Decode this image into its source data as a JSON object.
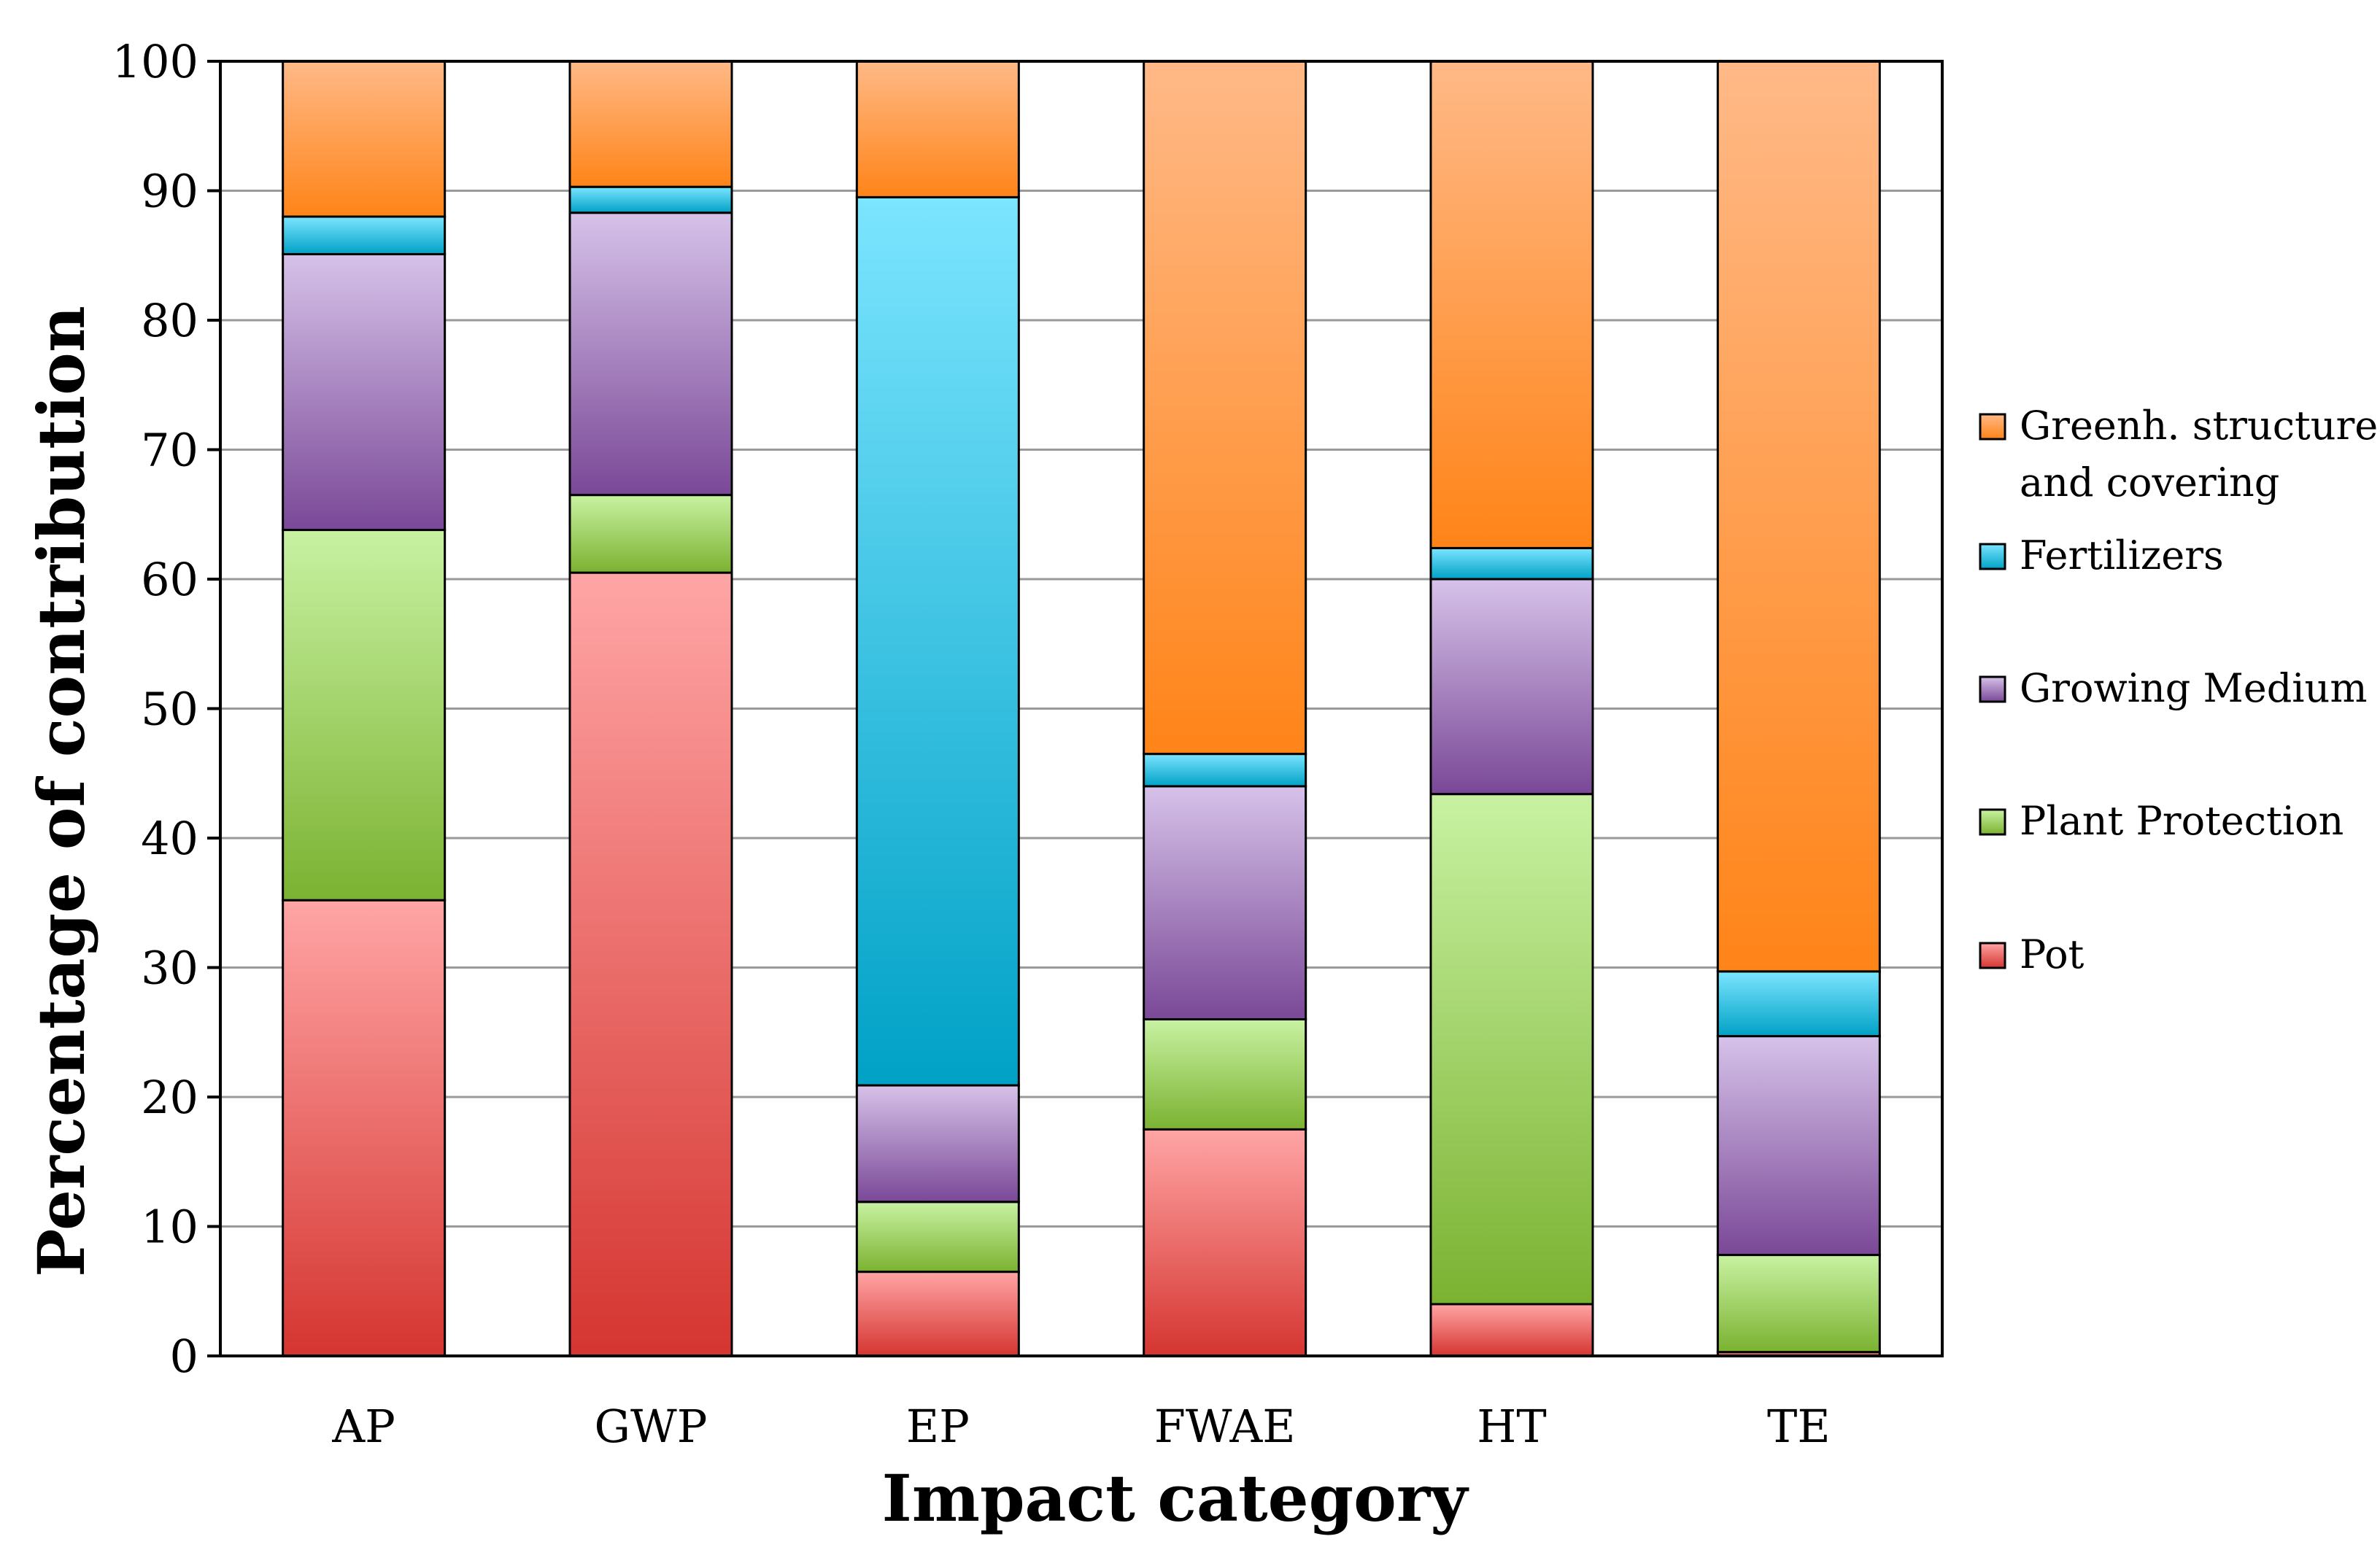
{
  "chart_data": {
    "type": "bar",
    "stacked": true,
    "title": "",
    "xlabel": "Impact category",
    "ylabel": "Percentage of contribution",
    "ylim": [
      0,
      100
    ],
    "yticks": [
      0,
      10,
      20,
      30,
      40,
      50,
      60,
      70,
      80,
      90,
      100
    ],
    "ytick_labels": [
      "0",
      "10",
      "20",
      "30",
      "40",
      "50",
      "60",
      "70",
      "80",
      "90",
      "100"
    ],
    "grid": true,
    "legend_position": "right",
    "categories": [
      "AP",
      "GWP",
      "EP",
      "FWAE",
      "HT",
      "TE"
    ],
    "series": [
      {
        "name": "Pot",
        "values": [
          35.2,
          60.5,
          6.5,
          17.5,
          4.0,
          0.3
        ],
        "colors": [
          "#ffa5a5",
          "#d53530"
        ]
      },
      {
        "name": "Plant Protection",
        "values": [
          28.6,
          6.0,
          5.4,
          8.5,
          39.4,
          7.5
        ],
        "colors": [
          "#c8f2a2",
          "#7bb231"
        ]
      },
      {
        "name": "Growing Medium",
        "values": [
          21.3,
          21.8,
          9.0,
          18.0,
          16.6,
          16.9
        ],
        "colors": [
          "#d6c2e9",
          "#7a4897"
        ]
      },
      {
        "name": "Fertilizers",
        "values": [
          2.9,
          2.0,
          68.6,
          2.5,
          2.4,
          5.0
        ],
        "colors": [
          "#7ce5ff",
          "#00a1c6"
        ]
      },
      {
        "name": "Greenh. structure and covering",
        "legend_lines": [
          "Greenh. structure",
          "and covering"
        ],
        "values": [
          12.0,
          9.7,
          10.5,
          53.5,
          37.6,
          70.3
        ],
        "colors": [
          "#ffb987",
          "#ff8418"
        ]
      }
    ]
  }
}
